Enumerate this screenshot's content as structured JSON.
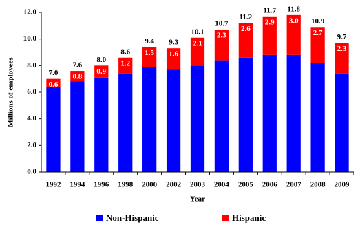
{
  "chart_data": {
    "type": "stacked-bar",
    "categories": [
      "1992",
      "1994",
      "1996",
      "1998",
      "2000",
      "2002",
      "2003",
      "2004",
      "2005",
      "2006",
      "2007",
      "2008",
      "2009"
    ],
    "series": [
      {
        "name": "Non-Hispanic",
        "color": "#0000ff",
        "values": [
          6.4,
          6.8,
          7.1,
          7.4,
          7.9,
          7.7,
          8.0,
          8.4,
          8.6,
          8.8,
          8.8,
          8.2,
          7.4
        ]
      },
      {
        "name": "Hispanic",
        "color": "#ff0000",
        "values": [
          0.6,
          0.8,
          0.9,
          1.2,
          1.5,
          1.6,
          2.1,
          2.3,
          2.6,
          2.9,
          3.0,
          2.7,
          2.3
        ],
        "value_labels": [
          "0.6",
          "0.8",
          "0.9",
          "1.2",
          "1.5",
          "1.6",
          "2.1",
          "2.3",
          "2.6",
          "2.9",
          "3.0",
          "2.7",
          "2.3"
        ]
      }
    ],
    "totals": {
      "values": [
        7.0,
        7.6,
        8.0,
        8.6,
        9.4,
        9.3,
        10.1,
        10.7,
        11.2,
        11.7,
        11.8,
        10.9,
        9.7
      ],
      "value_labels": [
        "7.0",
        "7.6",
        "8.0",
        "8.6",
        "9.4",
        "9.3",
        "10.1",
        "10.7",
        "11.2",
        "11.7",
        "11.8",
        "10.9",
        "9.7"
      ]
    },
    "ylim": [
      0,
      12
    ],
    "yticks": [
      {
        "value": 0,
        "label": "0.0"
      },
      {
        "value": 2,
        "label": "2.0"
      },
      {
        "value": 4,
        "label": "4.0"
      },
      {
        "value": 6,
        "label": "6.0"
      },
      {
        "value": 8,
        "label": "8.0"
      },
      {
        "value": 10,
        "label": "10.0"
      },
      {
        "value": 12,
        "label": "12.0"
      }
    ],
    "y_label": "Millions of employees",
    "x_label": "Year",
    "legend": "bottom",
    "grid": false
  }
}
